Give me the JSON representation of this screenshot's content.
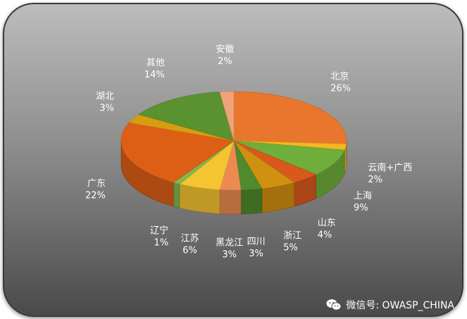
{
  "chart_data": {
    "type": "pie",
    "style": "3d-exploded-none",
    "slices": [
      {
        "label": "北京",
        "value": 26,
        "value_label": "26%",
        "color": "#e8762c"
      },
      {
        "label": "云南+广西",
        "value": 2,
        "value_label": "2%",
        "color": "#f2b81e"
      },
      {
        "label": "上海",
        "value": 9,
        "value_label": "9%",
        "color": "#6fae3a"
      },
      {
        "label": "山东",
        "value": 4,
        "value_label": "4%",
        "color": "#d9581c"
      },
      {
        "label": "浙江",
        "value": 5,
        "value_label": "5%",
        "color": "#d09010"
      },
      {
        "label": "四川",
        "value": 3,
        "value_label": "3%",
        "color": "#4f8a2c"
      },
      {
        "label": "黑龙江",
        "value": 3,
        "value_label": "3%",
        "color": "#ec8a52"
      },
      {
        "label": "江苏",
        "value": 6,
        "value_label": "6%",
        "color": "#f4c431"
      },
      {
        "label": "辽宁",
        "value": 1,
        "value_label": "1%",
        "color": "#7fb950"
      },
      {
        "label": "广东",
        "value": 22,
        "value_label": "22%",
        "color": "#dd5f16"
      },
      {
        "label": "湖北",
        "value": 3,
        "value_label": "3%",
        "color": "#d79c10"
      },
      {
        "label": "其他",
        "value": 14,
        "value_label": "14%",
        "color": "#5a922f"
      },
      {
        "label": "安徽",
        "value": 2,
        "value_label": "2%",
        "color": "#f1a27a"
      }
    ]
  },
  "watermark": {
    "text": "微信号: OWASP_CHINA",
    "icon": "wechat-icon"
  }
}
